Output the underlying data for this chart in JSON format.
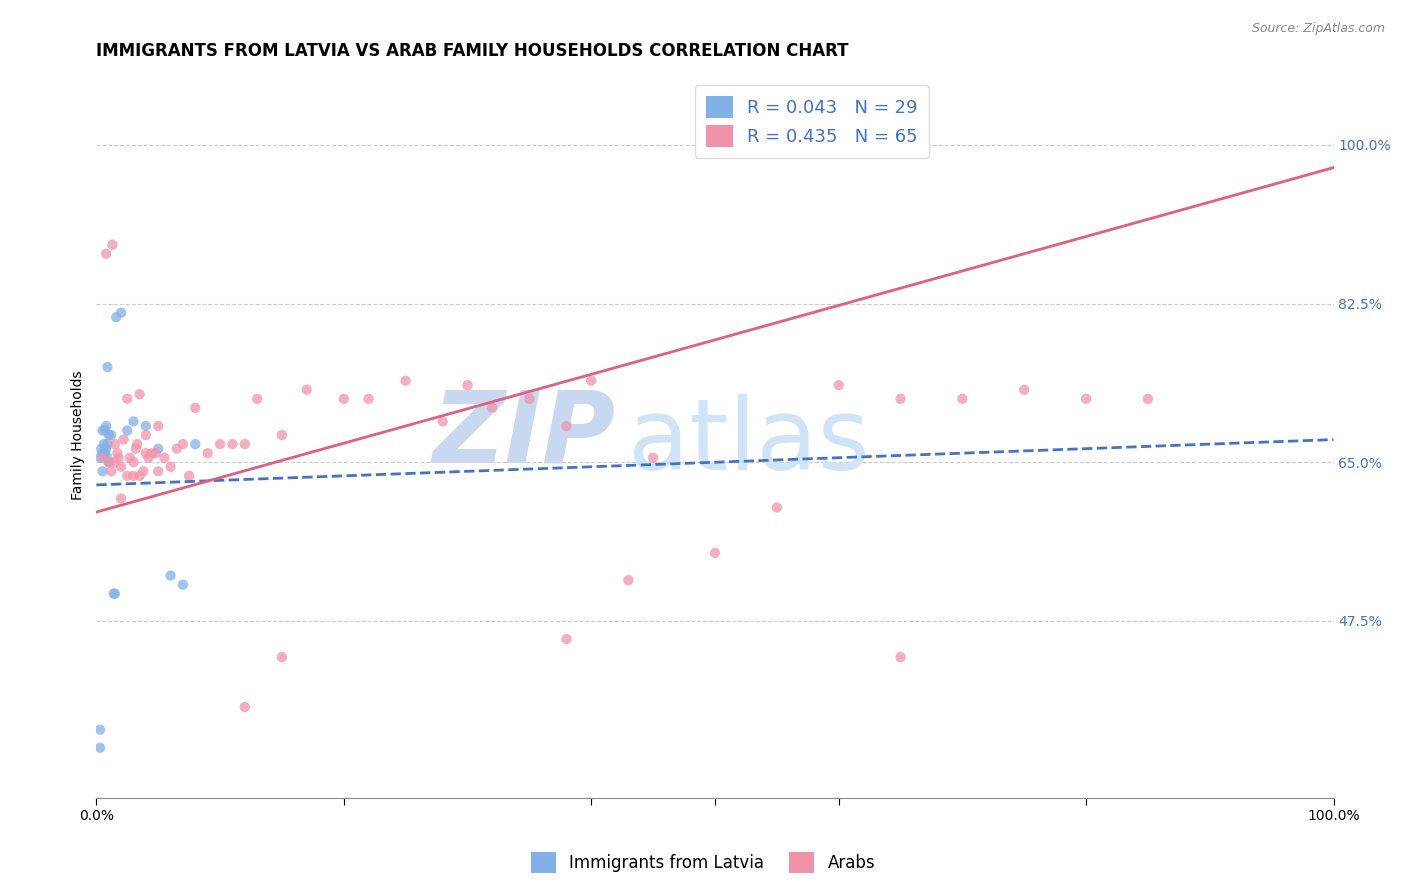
{
  "title": "IMMIGRANTS FROM LATVIA VS ARAB FAMILY HOUSEHOLDS CORRELATION CHART",
  "source": "Source: ZipAtlas.com",
  "ylabel": "Family Households",
  "ytick_labels": [
    "100.0%",
    "82.5%",
    "65.0%",
    "47.5%"
  ],
  "ytick_values": [
    1.0,
    0.825,
    0.65,
    0.475
  ],
  "xlim": [
    0.0,
    1.0
  ],
  "ylim": [
    0.28,
    1.08
  ],
  "legend_r1": "R = 0.043   N = 29",
  "legend_r2": "R = 0.435   N = 65",
  "latvia_color": "#82b0e8",
  "arab_color": "#f093aa",
  "latvia_line_color": "#4472c4",
  "arab_line_color": "#e06080",
  "latvia_scatter_x": [
    0.003,
    0.003,
    0.003,
    0.004,
    0.005,
    0.005,
    0.005,
    0.006,
    0.007,
    0.007,
    0.008,
    0.008,
    0.009,
    0.009,
    0.009,
    0.01,
    0.01,
    0.012,
    0.014,
    0.015,
    0.016,
    0.02,
    0.025,
    0.03,
    0.04,
    0.05,
    0.06,
    0.07,
    0.08
  ],
  "latvia_scatter_y": [
    0.335,
    0.355,
    0.655,
    0.665,
    0.64,
    0.66,
    0.685,
    0.67,
    0.66,
    0.685,
    0.665,
    0.69,
    0.655,
    0.67,
    0.755,
    0.65,
    0.68,
    0.68,
    0.505,
    0.505,
    0.81,
    0.815,
    0.685,
    0.695,
    0.69,
    0.665,
    0.525,
    0.515,
    0.67
  ],
  "arab_scatter_x": [
    0.005,
    0.008,
    0.01,
    0.012,
    0.013,
    0.015,
    0.015,
    0.017,
    0.018,
    0.02,
    0.02,
    0.022,
    0.025,
    0.025,
    0.027,
    0.03,
    0.03,
    0.032,
    0.033,
    0.035,
    0.035,
    0.038,
    0.04,
    0.04,
    0.042,
    0.045,
    0.048,
    0.05,
    0.05,
    0.055,
    0.06,
    0.065,
    0.07,
    0.075,
    0.08,
    0.09,
    0.1,
    0.11,
    0.12,
    0.13,
    0.15,
    0.17,
    0.2,
    0.22,
    0.25,
    0.28,
    0.3,
    0.32,
    0.35,
    0.38,
    0.4,
    0.45,
    0.5,
    0.55,
    0.6,
    0.65,
    0.7,
    0.75,
    0.8,
    0.85,
    0.12,
    0.38,
    0.43,
    0.15,
    0.65
  ],
  "arab_scatter_y": [
    0.655,
    0.88,
    0.65,
    0.64,
    0.89,
    0.65,
    0.67,
    0.66,
    0.655,
    0.61,
    0.645,
    0.675,
    0.635,
    0.72,
    0.655,
    0.635,
    0.65,
    0.665,
    0.67,
    0.635,
    0.725,
    0.64,
    0.66,
    0.68,
    0.655,
    0.66,
    0.66,
    0.64,
    0.69,
    0.655,
    0.645,
    0.665,
    0.67,
    0.635,
    0.71,
    0.66,
    0.67,
    0.67,
    0.67,
    0.72,
    0.68,
    0.73,
    0.72,
    0.72,
    0.74,
    0.695,
    0.735,
    0.71,
    0.72,
    0.69,
    0.74,
    0.655,
    0.55,
    0.6,
    0.735,
    0.435,
    0.72,
    0.73,
    0.72,
    0.72,
    0.38,
    0.455,
    0.52,
    0.435,
    0.72
  ],
  "latvia_line_x": [
    0.0,
    1.0
  ],
  "latvia_line_y": [
    0.625,
    0.675
  ],
  "arab_line_x": [
    0.0,
    1.0
  ],
  "arab_line_y": [
    0.595,
    0.975
  ],
  "scatter_size": 55,
  "watermark_zip_color": "#c8d8f0",
  "watermark_atlas_color": "#d0e4f8",
  "title_fontsize": 12,
  "axis_label_fontsize": 10,
  "tick_label_fontsize": 10,
  "legend_fontsize": 13,
  "legend_color": "#4472c4"
}
